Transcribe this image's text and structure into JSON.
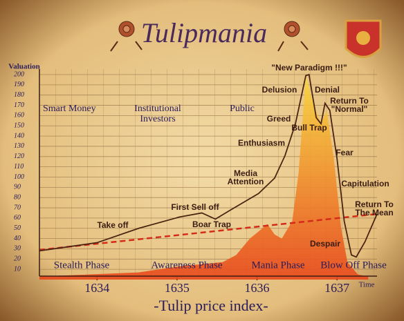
{
  "chart_data": {
    "type": "line",
    "title": "Tulipmania",
    "xlabel": "-Tulip price index-",
    "ylabel": "Valuation",
    "time_label": "Time",
    "xlim": [
      1633.28,
      1637.5
    ],
    "xticks": [
      1634,
      1635,
      1636,
      1637
    ],
    "ylim": [
      0,
      200
    ],
    "yticks": [
      10,
      20,
      30,
      40,
      50,
      60,
      70,
      80,
      90,
      100,
      110,
      120,
      130,
      140,
      150,
      160,
      170,
      180,
      190,
      200
    ],
    "grid": true,
    "series": [
      {
        "style": "area",
        "color": "#e8481c",
        "x": [
          1633.28,
          1634.52,
          1635.03,
          1635.57,
          1635.74,
          1635.91,
          1636.13,
          1636.22,
          1636.31,
          1636.44,
          1636.52,
          1636.61,
          1636.7,
          1636.8,
          1636.87,
          1636.96,
          1637.05,
          1637.13,
          1637.26,
          1637.39
        ],
        "values": [
          3,
          7,
          13,
          17,
          24,
          40,
          54,
          44,
          40,
          57,
          104,
          199,
          172,
          152,
          165,
          118,
          51,
          17,
          5,
          3
        ]
      },
      {
        "style": "dashed",
        "color": "#d42a1a",
        "x": [
          1633.28,
          1637.5
        ],
        "values": [
          29,
          64
        ]
      },
      {
        "style": "line",
        "color": "#4a2410",
        "x": [
          1633.28,
          1634.0,
          1634.52,
          1635.03,
          1635.31,
          1635.48,
          1635.65,
          1636.02,
          1636.22,
          1636.35,
          1636.48,
          1636.61,
          1636.65,
          1636.74,
          1636.8,
          1636.85,
          1636.91,
          1637.0,
          1637.09,
          1637.18,
          1637.24,
          1637.35,
          1637.5
        ],
        "values": [
          28,
          36,
          50,
          61,
          65,
          59,
          67,
          84,
          99,
          121,
          152,
          199,
          200,
          158,
          152,
          172,
          165,
          118,
          57,
          24,
          22,
          37,
          64
        ]
      }
    ],
    "annotations": [
      [
        "Smart Money"
      ],
      [
        "Institutional",
        "Investors"
      ],
      [
        "Public"
      ],
      [
        "Greed"
      ],
      [
        "Enthusiasm"
      ],
      [
        "Media",
        "Attention"
      ],
      [
        "First Sell off"
      ],
      [
        "Take off"
      ],
      [
        "Boar Trap"
      ],
      [
        "\"New Paradigm !!!\""
      ],
      [
        "Delusion"
      ],
      [
        "Denial"
      ],
      [
        "Return To",
        "\"Normal\""
      ],
      [
        "Bull Trap"
      ],
      [
        "Fear"
      ],
      [
        "Capitulation"
      ],
      [
        "Return To",
        "The Mean"
      ],
      [
        "Despair"
      ]
    ],
    "phases": [
      "Stealth Phase",
      "Awareness Phase",
      "Mania Phase",
      "Blow Off Phase"
    ]
  }
}
